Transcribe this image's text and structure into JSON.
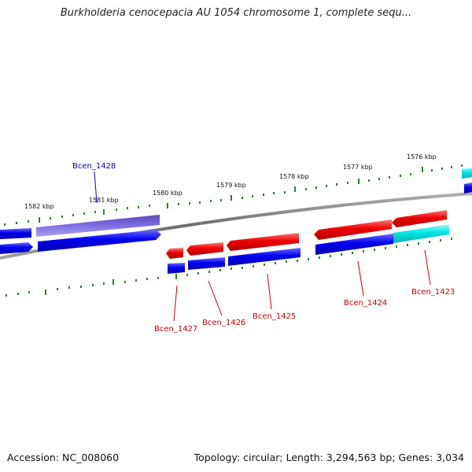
{
  "title": "Burkholderia cenocepacia AU 1054 chromosome 1, complete sequ...",
  "footer": {
    "accession": "Accession: NC_008060",
    "stats": "Topology: circular; Length: 3,294,563 bp; Genes: 3,034"
  },
  "kbp_labels": [
    "1582 kbp",
    "1581 kbp",
    "1580 kbp",
    "1579 kbp",
    "1578 kbp",
    "1577 kbp",
    "1576 kbp"
  ],
  "gene_labels": [
    {
      "name": "Bcen_1428",
      "color": "#0000cc"
    },
    {
      "name": "Bcen_1427",
      "color": "#cc0000"
    },
    {
      "name": "Bcen_1426",
      "color": "#cc0000"
    },
    {
      "name": "Bcen_1425",
      "color": "#cc0000"
    },
    {
      "name": "Bcen_1424",
      "color": "#cc0000"
    },
    {
      "name": "Bcen_1423",
      "color": "#cc0000"
    }
  ],
  "colors": {
    "forward_gene": "#0000ee",
    "reverse_gene": "#ee0000",
    "highlight_gene": "#7766dd",
    "cyan_gene": "#00e5e5",
    "tick": "#228822",
    "backbone": "#808080"
  }
}
